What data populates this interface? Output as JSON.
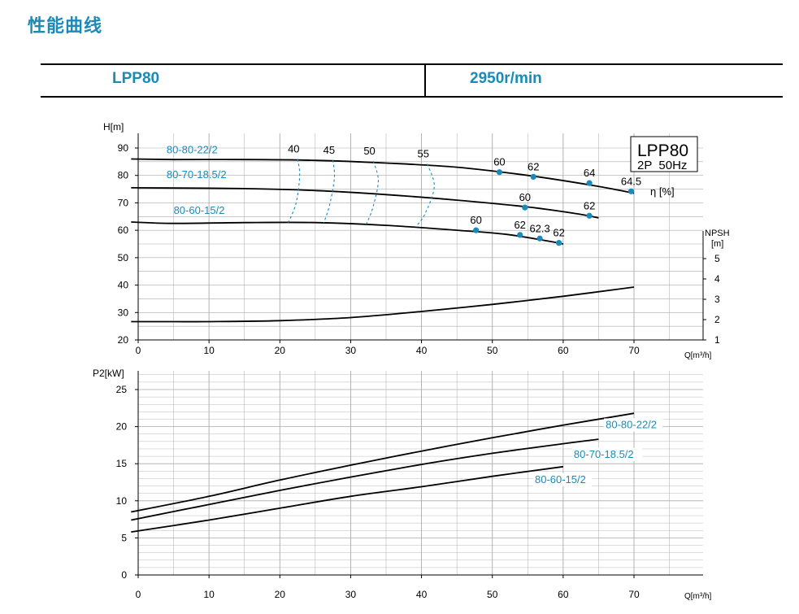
{
  "heading": "性能曲线",
  "header": {
    "model": "LPP80",
    "speed": "2950r/min"
  },
  "colors": {
    "accent": "#1a8bb8",
    "grid": "#aaaaaa",
    "curve": "#000000",
    "point": "#1a8bb8"
  },
  "chart_data": [
    {
      "type": "line",
      "title": "LPP80",
      "subtitle": "2P  50Hz",
      "eff_label": "η [%]",
      "xlabel": "Q[m³/h]",
      "ylabel": "H[m]",
      "y2label": "NPSH",
      "y2unit": "[m]",
      "xlim": [
        0,
        70
      ],
      "ylim": [
        20,
        90
      ],
      "y2lim": [
        1,
        6
      ],
      "x_ticks": [
        "0",
        "10",
        "20",
        "30",
        "40",
        "50",
        "60",
        "70"
      ],
      "y_ticks": [
        "20",
        "30",
        "40",
        "50",
        "60",
        "70",
        "80",
        "90"
      ],
      "y2_ticks": [
        "1",
        "2",
        "3",
        "4",
        "5"
      ],
      "grid": true,
      "series": [
        {
          "name": "80-80-22/2",
          "x": [
            -1,
            5,
            15,
            25,
            35,
            45,
            55,
            65,
            70
          ],
          "y": [
            86,
            85.8,
            85.8,
            85.5,
            84.5,
            83,
            80,
            76,
            73.5
          ],
          "label_at": [
            4,
            88
          ]
        },
        {
          "name": "80-70-18.5/2",
          "x": [
            -1,
            5,
            15,
            25,
            35,
            45,
            55,
            62,
            65
          ],
          "y": [
            75.5,
            75.4,
            75.2,
            74.5,
            73,
            71,
            68.5,
            66,
            64.5
          ],
          "label_at": [
            4,
            79
          ]
        },
        {
          "name": "80-60-15/2",
          "x": [
            -1,
            5,
            15,
            25,
            35,
            45,
            52,
            58,
            60
          ],
          "y": [
            63,
            62.5,
            62.8,
            62.8,
            61.8,
            60,
            58.5,
            56,
            55
          ],
          "label_at": [
            5,
            66
          ]
        }
      ],
      "efficiency_points": [
        {
          "x": 51,
          "y": 81.2,
          "label": "60"
        },
        {
          "x": 55.8,
          "y": 79.5,
          "label": "62"
        },
        {
          "x": 63.7,
          "y": 77.2,
          "label": "64"
        },
        {
          "x": 69.6,
          "y": 74.2,
          "label": "64.5"
        },
        {
          "x": 54.6,
          "y": 68.3,
          "label": "60"
        },
        {
          "x": 63.7,
          "y": 65.3,
          "label": "62"
        },
        {
          "x": 47.7,
          "y": 60,
          "label": "60"
        },
        {
          "x": 53.9,
          "y": 58.3,
          "label": "62"
        },
        {
          "x": 56.7,
          "y": 57,
          "label": "62.3"
        },
        {
          "x": 59.4,
          "y": 55.4,
          "label": "62"
        }
      ],
      "iso_efficiency": [
        {
          "label": "40",
          "x": [
            22.5,
            22.8,
            22.3,
            21.2
          ],
          "y": [
            86,
            80,
            70,
            62.8
          ]
        },
        {
          "label": "45",
          "x": [
            27.5,
            27.7,
            27,
            26.2
          ],
          "y": [
            85.6,
            79,
            69,
            62.7
          ]
        },
        {
          "label": "50",
          "x": [
            33.2,
            33.9,
            33.1,
            32.2
          ],
          "y": [
            85.2,
            78,
            68,
            62.2
          ]
        },
        {
          "label": "55",
          "x": [
            40.8,
            41.8,
            40.5,
            39.2
          ],
          "y": [
            84.2,
            76,
            66,
            61.3
          ]
        }
      ],
      "npsh": {
        "x": [
          5,
          10,
          20,
          30,
          40,
          50,
          60,
          70
        ],
        "y": [
          1.9,
          1.9,
          1.95,
          2.1,
          2.4,
          2.75,
          3.15,
          3.6
        ]
      }
    },
    {
      "type": "line",
      "xlabel": "Q[m³/h]",
      "ylabel": "P2[kW]",
      "xlim": [
        0,
        70
      ],
      "ylim": [
        0,
        25
      ],
      "x_ticks": [
        "0",
        "10",
        "20",
        "30",
        "40",
        "50",
        "60",
        "70"
      ],
      "y_ticks": [
        "0",
        "5",
        "10",
        "15",
        "20",
        "25"
      ],
      "grid": true,
      "series": [
        {
          "name": "80-80-22/2",
          "x": [
            -1,
            10,
            20,
            30,
            40,
            50,
            60,
            70
          ],
          "y": [
            8.5,
            10.6,
            12.8,
            14.8,
            16.7,
            18.5,
            20.2,
            21.8
          ],
          "label_at": [
            66,
            19.8
          ]
        },
        {
          "name": "80-70-18.5/2",
          "x": [
            -1,
            10,
            20,
            30,
            40,
            50,
            60,
            65
          ],
          "y": [
            7.4,
            9.5,
            11.4,
            13.2,
            14.9,
            16.4,
            17.7,
            18.3
          ],
          "label_at": [
            61.5,
            15.8
          ]
        },
        {
          "name": "80-60-15/2",
          "x": [
            -1,
            10,
            20,
            30,
            40,
            50,
            60
          ],
          "y": [
            5.8,
            7.4,
            9.0,
            10.6,
            11.9,
            13.3,
            14.6
          ],
          "label_at": [
            56,
            12.4
          ]
        }
      ]
    }
  ]
}
